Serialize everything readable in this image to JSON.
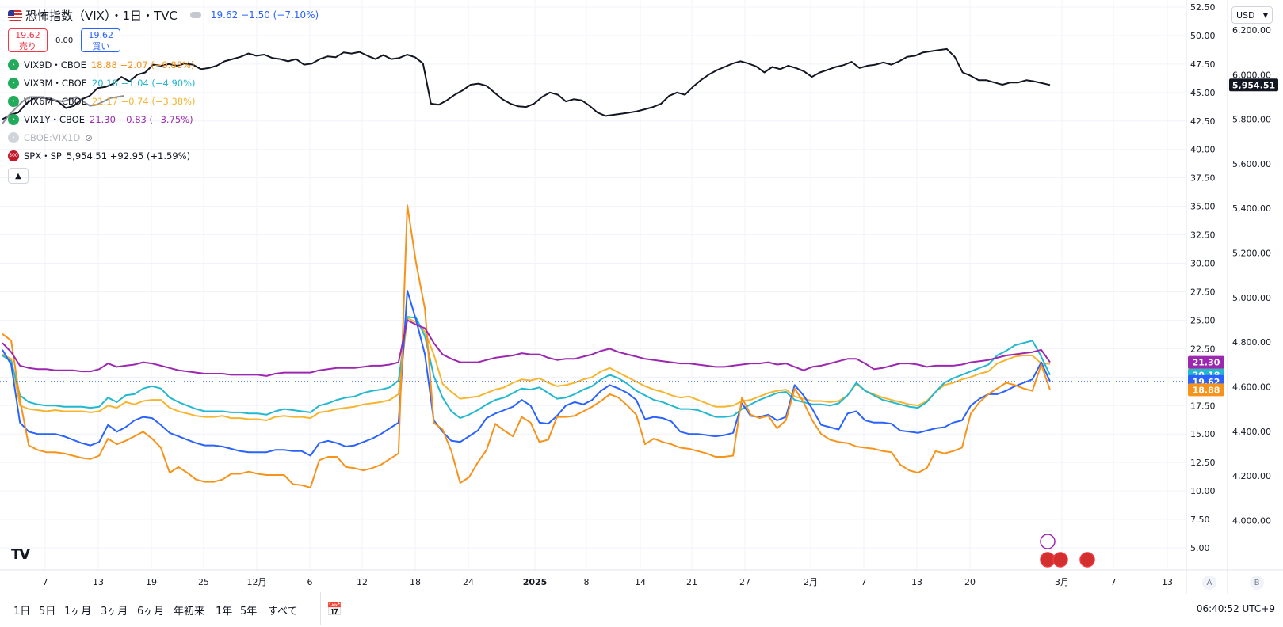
{
  "header": {
    "title": "恐怖指数（VIX）・1日・TVC",
    "price_text": "19.62  −1.50 (−7.10%)",
    "sell_price": "19.62",
    "sell_label": "売り",
    "spread": "0.00",
    "buy_price": "19.62",
    "buy_label": "買い",
    "currency": "USD"
  },
  "legend": [
    {
      "name": "VIX9D・CBOE",
      "value": "18.88  −2.07 (−9.88%)",
      "color": "#f7931a"
    },
    {
      "name": "VIX3M・CBOE",
      "value": "20.18  −1.04 (−4.90%)",
      "color": "#22b8cf"
    },
    {
      "name": "VIX6M・CBOE",
      "value": "21.17  −0.74 (−3.38%)",
      "color": "#f5b52e"
    },
    {
      "name": "VIX1Y・CBOE",
      "value": "21.30  −0.83 (−3.75%)",
      "color": "#9c27b0"
    },
    {
      "name": "CBOE:VIX1D",
      "value": "",
      "color": "#b2b5be"
    },
    {
      "name": "SPX・SP",
      "value": "5,954.51  +92.95 (+1.59%)",
      "color": "#131722"
    }
  ],
  "bottom": {
    "ranges": [
      "1日",
      "5日",
      "1ヶ月",
      "3ヶ月",
      "6ヶ月",
      "年初来",
      "1年",
      "5年",
      "すべて"
    ],
    "time": "06:40:52 UTC+9",
    "auto": "A",
    "log": "B"
  },
  "chart_data": {
    "type": "line",
    "x_ticks": [
      "7",
      "13",
      "19",
      "25",
      "12月",
      "6",
      "12",
      "18",
      "24",
      "2025",
      "8",
      "14",
      "21",
      "27",
      "2月",
      "7",
      "13",
      "20",
      "3月",
      "7",
      "13"
    ],
    "left_axis": {
      "ticks": [
        "52.50",
        "50.00",
        "47.50",
        "45.00",
        "42.50",
        "40.00",
        "37.50",
        "35.00",
        "32.50",
        "30.00",
        "27.50",
        "25.00",
        "22.50",
        "20.00",
        "17.50",
        "15.00",
        "12.50",
        "10.00",
        "7.50",
        "5.00"
      ],
      "ylim": [
        5.0,
        52.5
      ]
    },
    "right_axis": {
      "ticks": [
        "6,200.00",
        "6,000.00",
        "5,800.00",
        "5,600.00",
        "5,400.00",
        "5,200.00",
        "5,000.00",
        "4,800.00",
        "4,600.00",
        "4,400.00",
        "4,200.00",
        "4,000.00"
      ],
      "ylim": [
        3877,
        6303
      ]
    },
    "series": [
      {
        "name": "SPX",
        "axis": "right",
        "color": "#131722",
        "last_label": "5,954.51",
        "values": [
          5800,
          5820,
          5830,
          5870,
          5895,
          5900,
          5890,
          5880,
          5850,
          5860,
          5890,
          5905,
          5940,
          5945,
          5960,
          5990,
          5970,
          6000,
          6010,
          6045,
          6040,
          6048,
          6040,
          6050,
          6045,
          6025,
          6030,
          6040,
          6060,
          6070,
          6080,
          6095,
          6085,
          6090,
          6075,
          6070,
          6060,
          6070,
          6045,
          6050,
          6070,
          6082,
          6078,
          6100,
          6095,
          6102,
          6085,
          6070,
          6088,
          6070,
          6075,
          6090,
          6078,
          6050,
          5870,
          5865,
          5885,
          5910,
          5930,
          5955,
          5960,
          5950,
          5920,
          5890,
          5870,
          5858,
          5855,
          5870,
          5900,
          5920,
          5910,
          5880,
          5890,
          5885,
          5860,
          5830,
          5815,
          5820,
          5825,
          5830,
          5836,
          5845,
          5855,
          5870,
          5905,
          5920,
          5910,
          5945,
          5975,
          6000,
          6020,
          6035,
          6050,
          6060,
          6050,
          6037,
          6010,
          6035,
          6025,
          6040,
          6030,
          6015,
          5990,
          6010,
          6022,
          6035,
          6043,
          6058,
          6030,
          6040,
          6045,
          6055,
          6045,
          6060,
          6080,
          6085,
          6100,
          6105,
          6110,
          6115,
          6080,
          6010,
          5995,
          5975,
          5975,
          5965,
          5955,
          5965,
          5965,
          5975,
          5970,
          5962,
          5954
        ]
      },
      {
        "name": "VIX6M",
        "axis": "left",
        "color": "#f5b52e",
        "last_label": "21.17",
        "values": [
          22.0,
          21.6,
          17.5,
          17.2,
          17.1,
          17.0,
          17.1,
          17.0,
          17.0,
          17.0,
          16.9,
          17.0,
          17.5,
          17.3,
          17.8,
          17.6,
          17.9,
          18.0,
          18.0,
          17.3,
          17.0,
          16.8,
          16.6,
          16.5,
          16.5,
          16.6,
          16.4,
          16.4,
          16.3,
          16.3,
          16.2,
          16.5,
          16.6,
          16.5,
          16.5,
          16.4,
          16.9,
          17.0,
          17.2,
          17.3,
          17.4,
          17.6,
          17.7,
          17.8,
          18.0,
          18.5,
          25.2,
          24.8,
          24.0,
          22.0,
          19.4,
          18.7,
          18.1,
          18.2,
          18.3,
          18.6,
          18.9,
          19.1,
          19.5,
          19.8,
          19.7,
          19.9,
          19.5,
          19.2,
          19.3,
          19.5,
          19.8,
          20.0,
          20.5,
          20.8,
          20.4,
          20.0,
          19.6,
          19.2,
          18.9,
          18.7,
          18.4,
          18.2,
          18.3,
          18.0,
          17.7,
          17.4,
          17.4,
          17.5,
          17.9,
          18.0,
          18.3,
          18.6,
          18.8,
          18.9,
          18.3,
          18.1,
          17.9,
          17.9,
          17.8,
          17.9,
          18.4,
          19.4,
          18.8,
          18.5,
          18.2,
          18.0,
          17.8,
          17.6,
          17.5,
          17.9,
          18.7,
          19.3,
          19.5,
          19.8,
          20.0,
          20.3,
          20.5,
          21.2,
          21.5,
          21.8,
          21.9,
          21.9,
          21.2,
          21.17
        ]
      },
      {
        "name": "VIX3M",
        "axis": "left",
        "color": "#22b8cf",
        "last_label": "20.18",
        "values": [
          21.9,
          21.4,
          18.4,
          17.8,
          17.6,
          17.5,
          17.5,
          17.4,
          17.4,
          17.4,
          17.3,
          17.4,
          18.2,
          17.8,
          18.4,
          18.5,
          19.0,
          19.2,
          19.0,
          18.2,
          17.8,
          17.5,
          17.2,
          17.0,
          17.0,
          17.0,
          16.9,
          16.9,
          16.8,
          16.8,
          16.7,
          17.0,
          17.2,
          17.1,
          17.0,
          16.9,
          17.5,
          17.7,
          18.0,
          18.2,
          18.3,
          18.6,
          18.8,
          18.9,
          19.1,
          19.7,
          25.3,
          25.2,
          23.6,
          20.1,
          18.2,
          17.0,
          16.4,
          16.7,
          17.1,
          17.6,
          18.0,
          18.2,
          18.6,
          19.0,
          18.9,
          19.1,
          18.6,
          18.1,
          18.2,
          18.5,
          18.9,
          19.2,
          19.8,
          20.2,
          19.9,
          19.4,
          18.8,
          18.4,
          18.0,
          17.8,
          17.5,
          17.2,
          17.2,
          17.1,
          16.8,
          16.5,
          16.5,
          16.6,
          17.2,
          17.6,
          18.0,
          18.3,
          18.6,
          18.7,
          18.0,
          17.8,
          17.6,
          17.6,
          17.5,
          17.7,
          18.4,
          19.5,
          18.8,
          18.4,
          18.0,
          17.8,
          17.6,
          17.4,
          17.3,
          17.8,
          18.7,
          19.5,
          19.9,
          20.2,
          20.5,
          20.8,
          21.1,
          21.9,
          22.3,
          22.8,
          23.0,
          23.2,
          21.8,
          20.18
        ]
      },
      {
        "name": "VIX",
        "axis": "left",
        "color": "#2962ff",
        "last_label": "19.62",
        "values": [
          22.4,
          21.1,
          16.0,
          15.2,
          15.0,
          15.0,
          15.0,
          14.8,
          14.5,
          14.2,
          14.0,
          14.3,
          15.8,
          15.2,
          15.6,
          16.2,
          16.5,
          16.4,
          15.8,
          15.1,
          14.8,
          14.5,
          14.2,
          14.0,
          14.0,
          13.9,
          13.7,
          13.5,
          13.4,
          13.4,
          13.4,
          13.6,
          13.6,
          13.5,
          13.5,
          13.1,
          14.2,
          14.4,
          14.2,
          13.9,
          14.0,
          14.3,
          14.6,
          15.0,
          15.5,
          16.0,
          27.6,
          25.0,
          22.0,
          16.2,
          15.2,
          14.4,
          14.3,
          14.8,
          15.3,
          16.4,
          16.8,
          17.1,
          17.4,
          18.0,
          17.5,
          16.0,
          15.9,
          16.6,
          17.5,
          17.8,
          17.6,
          18.0,
          18.8,
          19.3,
          19.0,
          18.6,
          18.0,
          16.3,
          16.5,
          16.4,
          16.1,
          15.2,
          15.0,
          15.0,
          14.9,
          14.8,
          14.9,
          15.1,
          17.7,
          16.6,
          16.5,
          16.7,
          16.2,
          16.5,
          19.3,
          18.4,
          17.2,
          15.8,
          15.6,
          15.4,
          16.8,
          17.0,
          16.2,
          16.0,
          16.0,
          15.9,
          15.3,
          15.2,
          15.1,
          15.3,
          15.5,
          15.6,
          16.0,
          16.2,
          17.5,
          18.1,
          18.5,
          18.5,
          18.8,
          19.2,
          19.5,
          19.8,
          21.3,
          19.62
        ]
      },
      {
        "name": "VIX9D",
        "axis": "left",
        "color": "#f7931a",
        "last_label": "18.88",
        "values": [
          23.8,
          23.2,
          18.0,
          14.0,
          13.6,
          13.4,
          13.4,
          13.3,
          13.1,
          12.9,
          12.8,
          13.1,
          14.6,
          14.1,
          14.4,
          14.8,
          15.2,
          14.6,
          13.8,
          11.6,
          12.1,
          11.6,
          11.0,
          10.8,
          10.8,
          11.0,
          11.5,
          11.5,
          11.7,
          11.5,
          11.4,
          11.4,
          11.4,
          10.6,
          10.5,
          10.3,
          12.7,
          13.0,
          13.0,
          12.1,
          12.0,
          11.8,
          12.0,
          12.3,
          12.8,
          13.3,
          35.1,
          30.0,
          26.0,
          16.0,
          15.4,
          13.5,
          10.7,
          11.2,
          12.5,
          13.6,
          15.9,
          15.3,
          14.8,
          16.5,
          16.0,
          14.3,
          14.5,
          16.5,
          16.5,
          16.6,
          17.0,
          17.4,
          17.9,
          18.5,
          18.2,
          17.5,
          16.7,
          14.1,
          14.6,
          14.3,
          14.1,
          13.8,
          13.7,
          13.5,
          13.3,
          13.0,
          13.0,
          13.1,
          18.2,
          16.7,
          16.4,
          16.6,
          15.5,
          16.2,
          19.0,
          17.8,
          16.2,
          15.0,
          14.5,
          14.3,
          14.2,
          13.9,
          13.8,
          13.7,
          13.5,
          13.4,
          12.3,
          11.8,
          11.6,
          12.0,
          13.5,
          13.3,
          13.5,
          13.8,
          16.8,
          17.8,
          18.5,
          19.0,
          19.5,
          19.3,
          19.0,
          18.8,
          21.1,
          18.88
        ]
      },
      {
        "name": "VIX1Y",
        "axis": "left",
        "color": "#9c27b0",
        "last_label": "21.30",
        "values": [
          23.0,
          22.2,
          21.0,
          20.8,
          20.7,
          20.7,
          20.6,
          20.6,
          20.6,
          20.5,
          20.5,
          20.7,
          21.2,
          20.9,
          21.0,
          21.1,
          21.3,
          21.2,
          21.0,
          20.8,
          20.6,
          20.5,
          20.4,
          20.3,
          20.3,
          20.3,
          20.2,
          20.2,
          20.2,
          20.2,
          20.1,
          20.3,
          20.4,
          20.4,
          20.4,
          20.4,
          20.6,
          20.7,
          20.8,
          20.8,
          20.8,
          20.9,
          21.0,
          21.0,
          21.1,
          21.3,
          25.0,
          24.6,
          24.3,
          23.0,
          22.0,
          21.6,
          21.3,
          21.3,
          21.3,
          21.5,
          21.7,
          21.8,
          21.9,
          22.1,
          22.0,
          22.0,
          21.7,
          21.5,
          21.6,
          21.6,
          21.8,
          22.0,
          22.3,
          22.5,
          22.2,
          22.0,
          21.8,
          21.6,
          21.5,
          21.4,
          21.3,
          21.2,
          21.2,
          21.1,
          21.0,
          20.9,
          20.9,
          21.0,
          21.1,
          21.2,
          21.2,
          21.3,
          21.1,
          21.2,
          20.9,
          20.6,
          20.9,
          21.0,
          21.2,
          21.4,
          21.6,
          21.6,
          21.2,
          20.7,
          20.8,
          21.0,
          21.2,
          21.2,
          21.1,
          20.9,
          21.0,
          21.0,
          21.0,
          21.1,
          21.3,
          21.4,
          21.5,
          21.7,
          21.9,
          22.0,
          22.1,
          22.2,
          22.4,
          21.3
        ]
      },
      {
        "name": "VIX1D",
        "axis": "right",
        "color": "#8a8d96",
        "last_label": "",
        "values": [
          5780,
          5820,
          5850,
          5880,
          5900,
          5900,
          5900,
          5895,
          5885,
          5880,
          5890,
          5900,
          5880,
          5860,
          5865,
          5880,
          5895,
          5900,
          5905
        ]
      }
    ],
    "last_price_line": 19.62
  }
}
